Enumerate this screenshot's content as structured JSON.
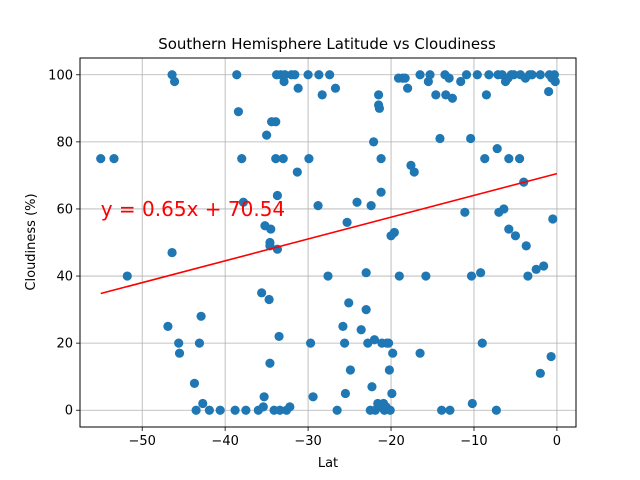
{
  "chart_data": {
    "type": "scatter",
    "title": "Southern Hemisphere Latitude vs Cloudiness",
    "xlabel": "Lat",
    "ylabel": "Cloudiness (%)",
    "xlim": [
      -57.5,
      2.3
    ],
    "ylim": [
      -5,
      105
    ],
    "xticks": [
      -50,
      -40,
      -30,
      -20,
      -10,
      0
    ],
    "yticks": [
      0,
      20,
      40,
      60,
      80,
      100
    ],
    "grid": true,
    "colors": {
      "points": "#1f77b4",
      "regression": "#ff0000",
      "grid": "#b0b0b0"
    },
    "regression": {
      "slope": 0.65,
      "intercept": 70.54,
      "x_range": [
        -55,
        0
      ],
      "label": "y = 0.65x + 70.54",
      "label_at": [
        -55,
        60
      ]
    },
    "points": [
      [
        -55,
        75
      ],
      [
        -53.4,
        75
      ],
      [
        -51.8,
        40
      ],
      [
        -46.9,
        25
      ],
      [
        -46.4,
        100
      ],
      [
        -46.1,
        98
      ],
      [
        -46.4,
        47
      ],
      [
        -45.6,
        20
      ],
      [
        -45.5,
        17
      ],
      [
        -43.7,
        8
      ],
      [
        -43.5,
        0
      ],
      [
        -43.1,
        20
      ],
      [
        -42.9,
        28
      ],
      [
        -42.7,
        2
      ],
      [
        -41.9,
        0
      ],
      [
        -40.6,
        0
      ],
      [
        -38.8,
        0
      ],
      [
        -38.6,
        100
      ],
      [
        -38.4,
        89
      ],
      [
        -38,
        75
      ],
      [
        -37.8,
        62
      ],
      [
        -37.5,
        0
      ],
      [
        -36,
        0
      ],
      [
        -35.6,
        35
      ],
      [
        -35.4,
        1
      ],
      [
        -35.2,
        55
      ],
      [
        -35.3,
        4
      ],
      [
        -35,
        82
      ],
      [
        -34.7,
        33
      ],
      [
        -34.6,
        14
      ],
      [
        -34.6,
        50
      ],
      [
        -34.6,
        49
      ],
      [
        -34.5,
        54
      ],
      [
        -34.4,
        86
      ],
      [
        -34.1,
        0
      ],
      [
        -33.9,
        86
      ],
      [
        -33.9,
        75
      ],
      [
        -33.8,
        100
      ],
      [
        -33.7,
        64
      ],
      [
        -33.7,
        48
      ],
      [
        -33.5,
        22
      ],
      [
        -33.4,
        0
      ],
      [
        -33.3,
        100
      ],
      [
        -33,
        75
      ],
      [
        -32.9,
        98
      ],
      [
        -32.8,
        100
      ],
      [
        -32.6,
        0
      ],
      [
        -32.2,
        1
      ],
      [
        -32,
        100
      ],
      [
        -31.6,
        100
      ],
      [
        -31.3,
        71
      ],
      [
        -31.2,
        96
      ],
      [
        -30,
        100
      ],
      [
        -29.9,
        75
      ],
      [
        -29.7,
        20
      ],
      [
        -29.4,
        4
      ],
      [
        -28.8,
        61
      ],
      [
        -28.7,
        100
      ],
      [
        -28.3,
        94
      ],
      [
        -27.6,
        40
      ],
      [
        -27.4,
        100
      ],
      [
        -26.7,
        96
      ],
      [
        -26.5,
        0
      ],
      [
        -25.8,
        25
      ],
      [
        -25.6,
        20
      ],
      [
        -25.5,
        5
      ],
      [
        -25.3,
        56
      ],
      [
        -25.1,
        32
      ],
      [
        -24.9,
        12
      ],
      [
        -24.1,
        62
      ],
      [
        -23.6,
        24
      ],
      [
        -23,
        41
      ],
      [
        -23,
        30
      ],
      [
        -22.8,
        20
      ],
      [
        -22.5,
        0
      ],
      [
        -22.4,
        61
      ],
      [
        -22.3,
        7
      ],
      [
        -22.1,
        80
      ],
      [
        -22,
        21
      ],
      [
        -21.9,
        0
      ],
      [
        -21.6,
        2
      ],
      [
        -21.5,
        94
      ],
      [
        -21.5,
        91
      ],
      [
        -21.4,
        90
      ],
      [
        -21.3,
        1
      ],
      [
        -21.2,
        65
      ],
      [
        -21.2,
        75
      ],
      [
        -21.1,
        20
      ],
      [
        -20.9,
        2
      ],
      [
        -20.8,
        0
      ],
      [
        -20.6,
        1
      ],
      [
        -20.5,
        20
      ],
      [
        -20.3,
        20
      ],
      [
        -20.2,
        12
      ],
      [
        -20.1,
        0
      ],
      [
        -20,
        52
      ],
      [
        -19.9,
        5
      ],
      [
        -19.8,
        17
      ],
      [
        -19.6,
        53
      ],
      [
        -19.1,
        99
      ],
      [
        -19,
        40
      ],
      [
        -18.6,
        99
      ],
      [
        -18.3,
        99
      ],
      [
        -18,
        96
      ],
      [
        -17.6,
        73
      ],
      [
        -17.2,
        71
      ],
      [
        -16.5,
        17
      ],
      [
        -16.5,
        100
      ],
      [
        -15.8,
        40
      ],
      [
        -15.5,
        98
      ],
      [
        -15.3,
        100
      ],
      [
        -14.6,
        94
      ],
      [
        -14.1,
        81
      ],
      [
        -13.9,
        0
      ],
      [
        -13.5,
        100
      ],
      [
        -13.4,
        94
      ],
      [
        -13,
        99
      ],
      [
        -12.9,
        0
      ],
      [
        -12.6,
        93
      ],
      [
        -11.6,
        98
      ],
      [
        -11.1,
        59
      ],
      [
        -10.9,
        100
      ],
      [
        -10.4,
        81
      ],
      [
        -10.3,
        40
      ],
      [
        -10.2,
        2
      ],
      [
        -9.6,
        100
      ],
      [
        -9.2,
        41
      ],
      [
        -9,
        20
      ],
      [
        -8.7,
        75
      ],
      [
        -8.5,
        94
      ],
      [
        -8.2,
        100
      ],
      [
        -7.1,
        100
      ],
      [
        -7.3,
        0
      ],
      [
        -7.2,
        78
      ],
      [
        -7,
        59
      ],
      [
        -6.6,
        100
      ],
      [
        -6.4,
        60
      ],
      [
        -6.2,
        98
      ],
      [
        -5.9,
        99
      ],
      [
        -5.8,
        54
      ],
      [
        -5.8,
        75
      ],
      [
        -5.5,
        100
      ],
      [
        -5.2,
        100
      ],
      [
        -5,
        52
      ],
      [
        -4.5,
        75
      ],
      [
        -4.4,
        100
      ],
      [
        -4,
        68
      ],
      [
        -3.8,
        99
      ],
      [
        -3.7,
        49
      ],
      [
        -3.5,
        40
      ],
      [
        -3.3,
        100
      ],
      [
        -3,
        100
      ],
      [
        -2.5,
        42
      ],
      [
        -2,
        100
      ],
      [
        -2,
        11
      ],
      [
        -1.6,
        43
      ],
      [
        -1,
        95
      ],
      [
        -0.9,
        100
      ],
      [
        -0.7,
        16
      ],
      [
        -0.6,
        99
      ],
      [
        -0.5,
        57
      ],
      [
        -0.2,
        98
      ],
      [
        -0.3,
        100
      ]
    ]
  }
}
